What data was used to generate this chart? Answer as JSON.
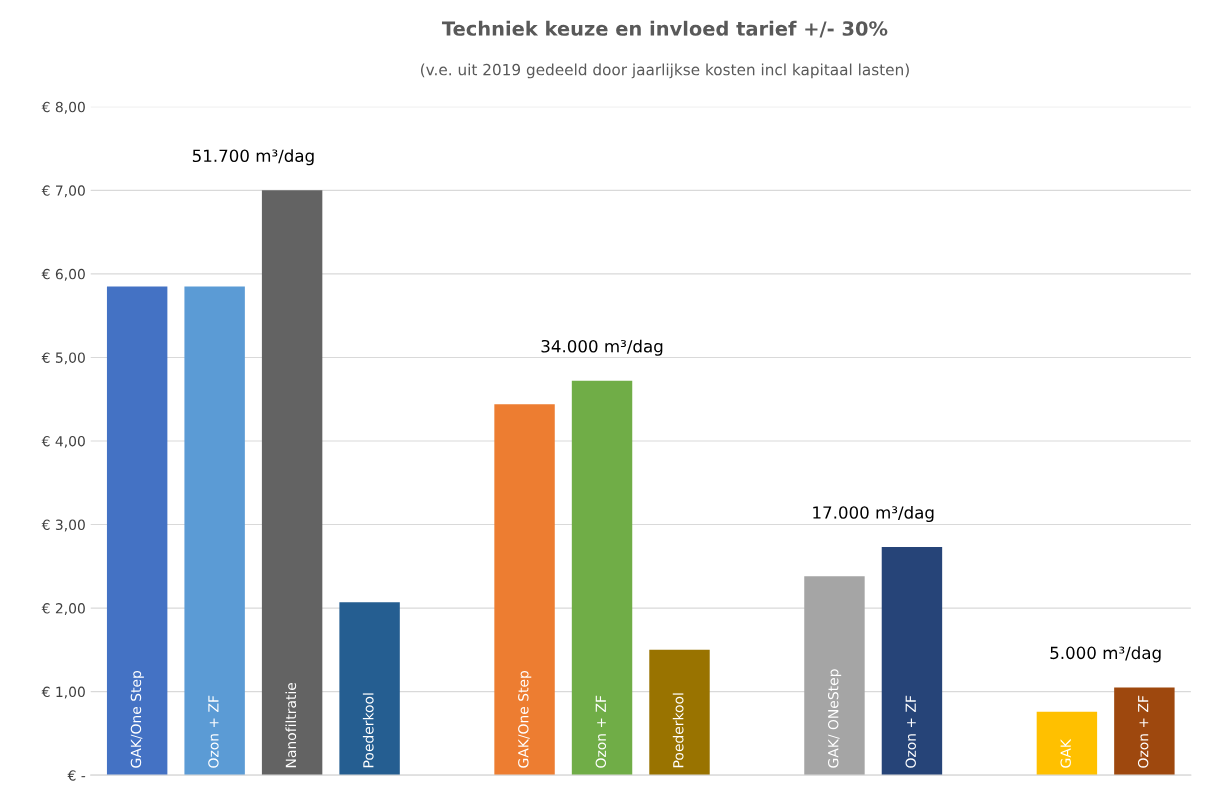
{
  "chart_data": {
    "type": "bar",
    "title": "Techniek keuze en invloed tarief +/- 30%",
    "subtitle": "(v.e. uit 2019 gedeeld door jaarlijkse kosten incl kapitaal lasten)",
    "categories": [
      "GAK/One Step",
      "Ozon + ZF",
      "Nanofiltratie",
      "Poederkool",
      null,
      "GAK/One Step",
      "Ozon + ZF",
      "Poederkool",
      null,
      "GAK/ ONeStep",
      "Ozon + ZF",
      null,
      "GAK",
      "Ozon + ZF"
    ],
    "values": [
      5.85,
      5.85,
      7.0,
      2.07,
      null,
      4.44,
      4.72,
      1.5,
      null,
      2.38,
      2.73,
      null,
      0.76,
      1.05
    ],
    "colors": [
      "#4472c4",
      "#5b9bd5",
      "#636363",
      "#255e91",
      "#ffffff",
      "#ed7d31",
      "#70ad47",
      "#997300",
      "#ffffff",
      "#a5a5a5",
      "#264478",
      "#ffffff",
      "#ffc000",
      "#9e480e"
    ],
    "annotations": [
      "51.700 m³/dag",
      "34.000 m³/dag",
      "17.000 m³/dag",
      "5.000 m³/dag"
    ],
    "ylim": [
      0,
      8
    ],
    "yticks": [
      {
        "value": 0,
        "label": "€ -"
      },
      {
        "value": 1,
        "label": "€ 1,00"
      },
      {
        "value": 2,
        "label": "€ 2,00"
      },
      {
        "value": 3,
        "label": "€ 3,00"
      },
      {
        "value": 4,
        "label": "€ 4,00"
      },
      {
        "value": 5,
        "label": "€ 5,00"
      },
      {
        "value": 6,
        "label": "€ 6,00"
      },
      {
        "value": 7,
        "label": "€ 7,00"
      },
      {
        "value": 8,
        "label": "€ 8,00"
      }
    ],
    "grid": "y"
  }
}
